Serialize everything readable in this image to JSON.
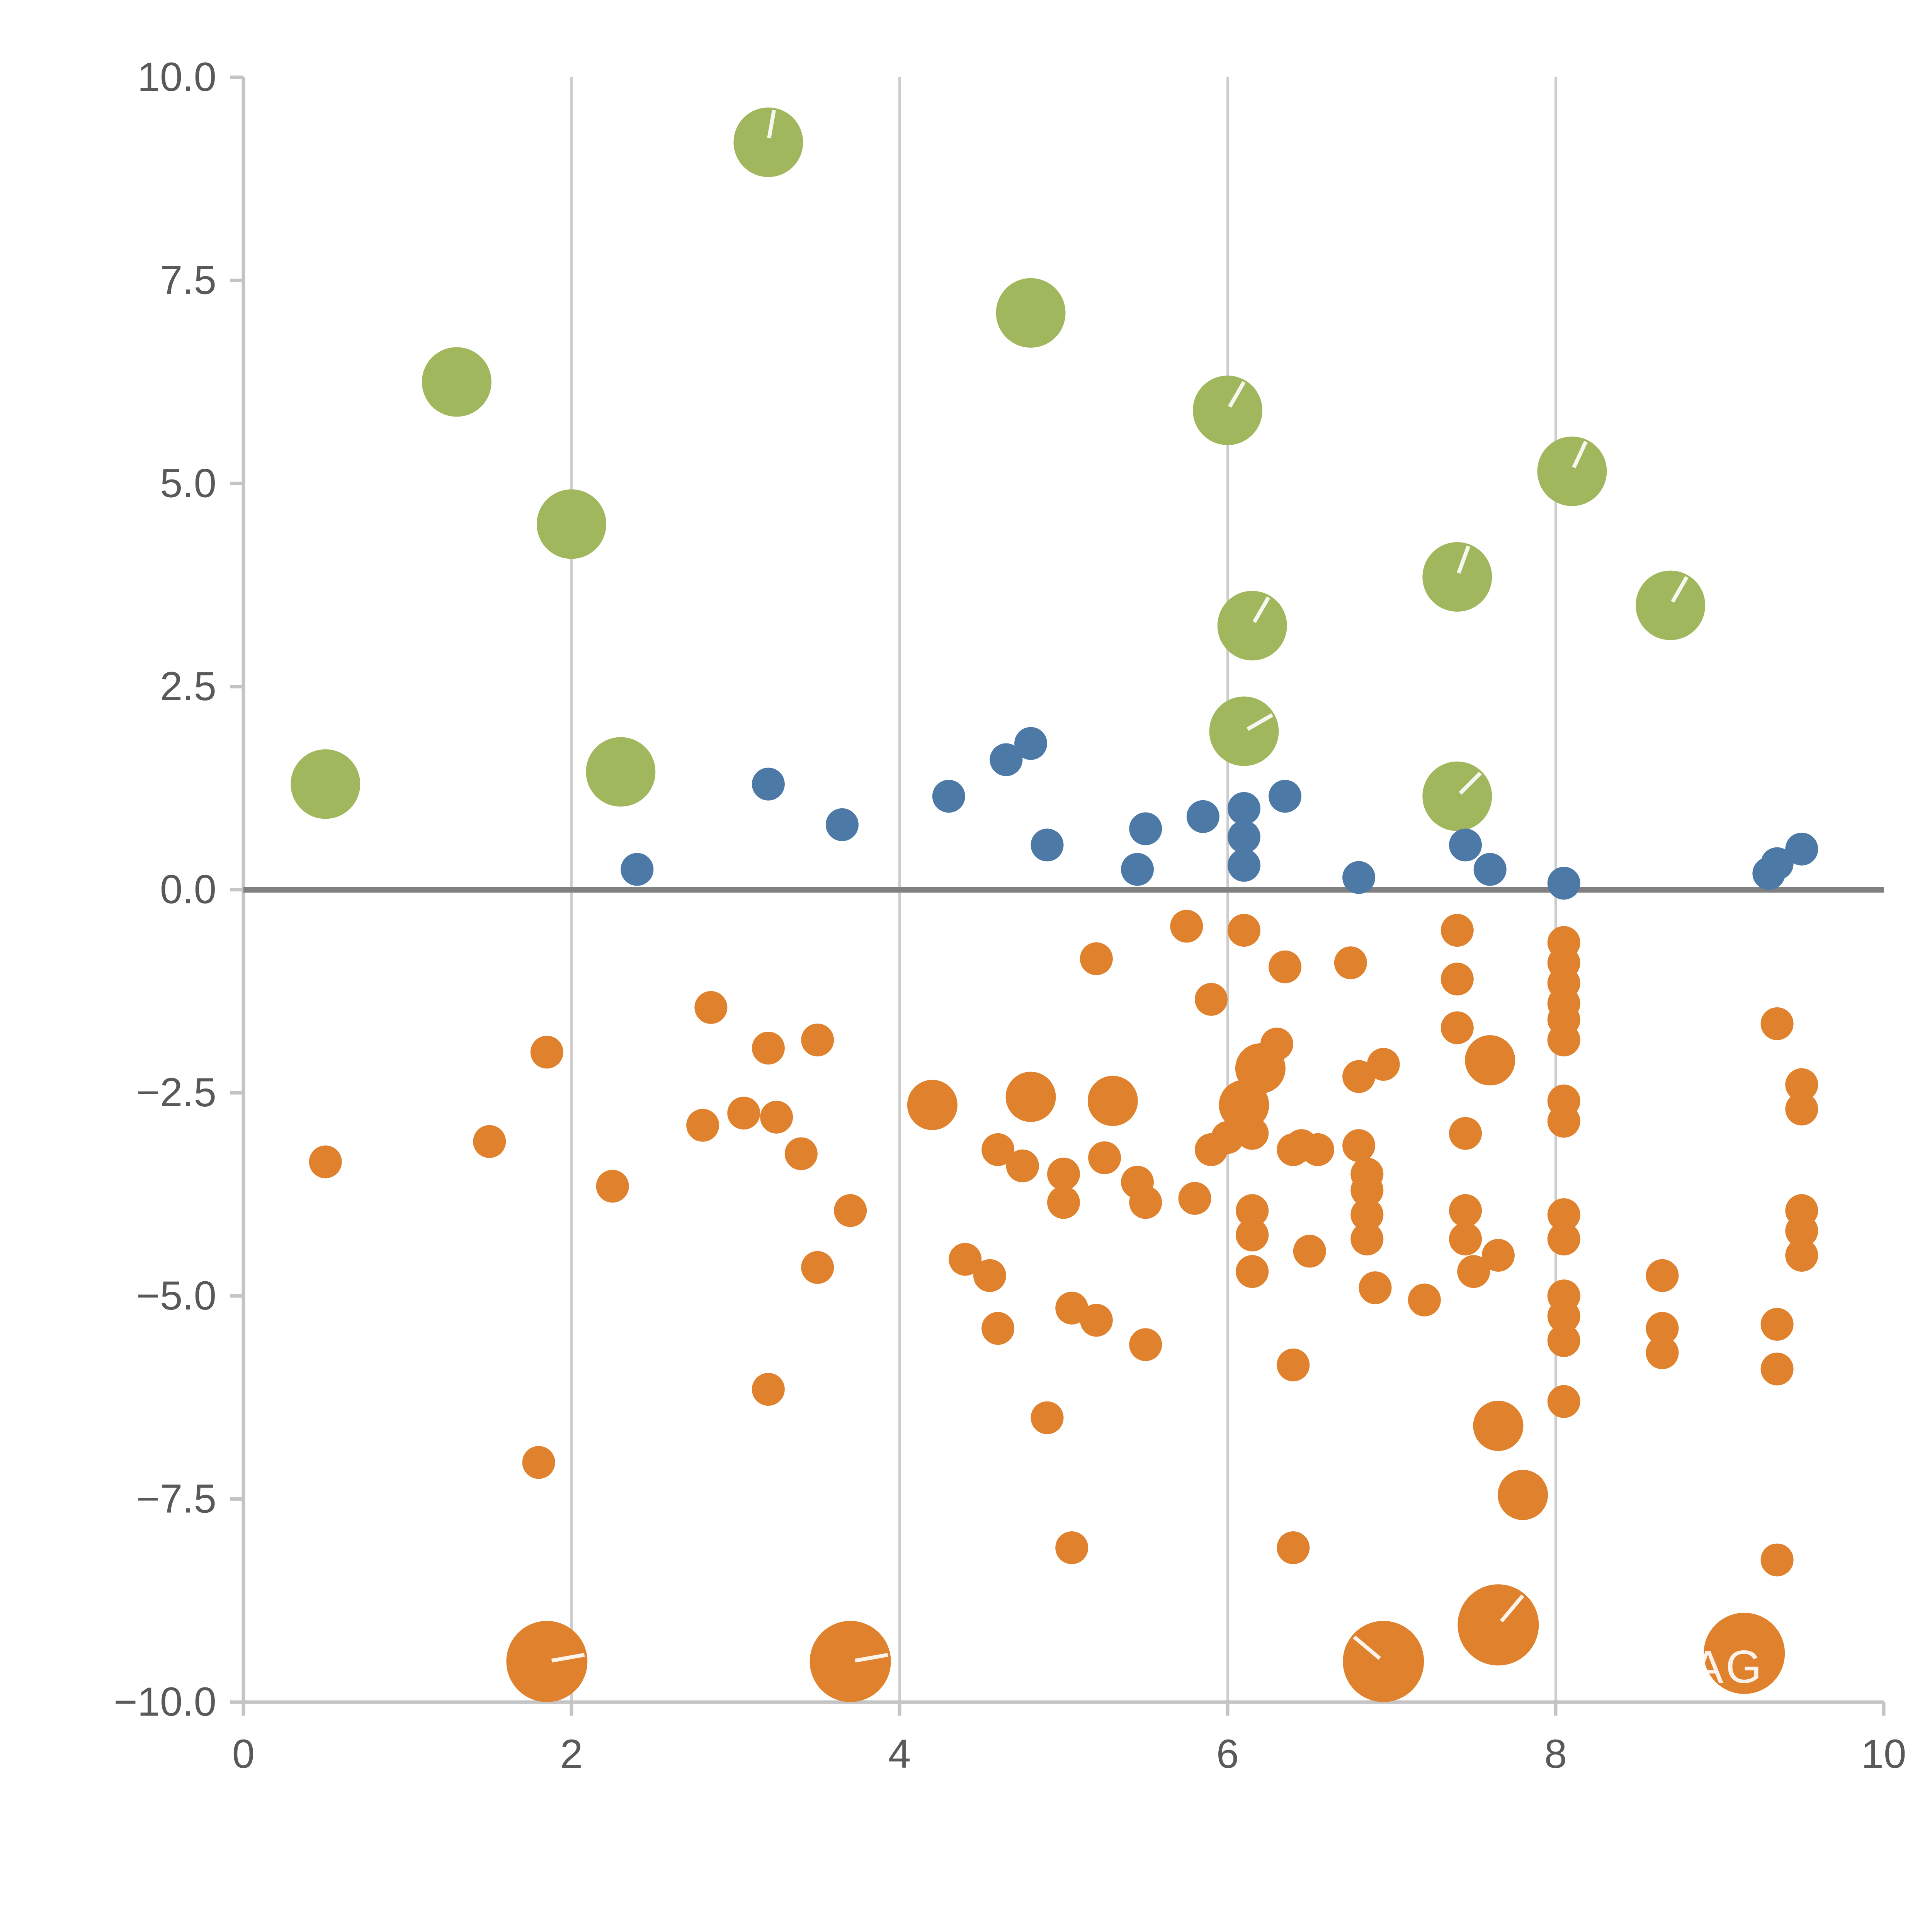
{
  "chart_data": {
    "type": "scatter",
    "title": "",
    "xlabel": "",
    "ylabel": "",
    "xlim": [
      0,
      10
    ],
    "ylim": [
      -10,
      10
    ],
    "x_ticks": [
      0,
      2,
      4,
      6,
      8,
      10
    ],
    "x_tick_labels": [
      "0",
      "2",
      "4",
      "6",
      "8",
      "10"
    ],
    "y_ticks": [
      10,
      7.5,
      5,
      2.5,
      0,
      -2.5,
      -5,
      -7.5,
      -10
    ],
    "y_tick_labels": [
      "10.0",
      "7.5",
      "5.0",
      "2.5",
      "0.0",
      "−2.5",
      "−5.0",
      "−7.5",
      "−10.0"
    ],
    "grid_x": [
      2,
      4,
      6,
      8
    ],
    "grid_on": true,
    "zero_line_y": 0,
    "legend": "none",
    "watermark": "AG",
    "colors": {
      "green": "#a1b75d",
      "blue": "#4d79a7",
      "orange": "#e0812d",
      "grid": "#cccccc",
      "spine": "#c4c4c4",
      "zero_line": "#808080",
      "tick_label": "#595959",
      "marker_slice_line": "#ffffff"
    },
    "marker_radii": {
      "g": 18,
      "b": 8.5,
      "s": 8.5,
      "m": 13,
      "L": 21
    },
    "series": [
      {
        "name": "green-large-bubbles",
        "color_key": "green",
        "default_size": "g",
        "points": [
          [
            1.3,
            6.25,
            "g",
            null
          ],
          [
            3.2,
            9.2,
            "g",
            -80
          ],
          [
            4.8,
            7.1,
            "g",
            null
          ],
          [
            2.0,
            4.5,
            "g",
            null
          ],
          [
            6.0,
            5.9,
            "g",
            -60
          ],
          [
            8.1,
            5.15,
            "g",
            -65
          ],
          [
            7.4,
            3.85,
            "g",
            -70
          ],
          [
            8.7,
            3.5,
            "g",
            -60
          ],
          [
            6.15,
            3.25,
            "g",
            -60
          ],
          [
            6.1,
            1.95,
            "g",
            -30
          ],
          [
            0.5,
            1.3,
            "g",
            null
          ],
          [
            2.3,
            1.45,
            "g",
            null
          ],
          [
            7.4,
            1.15,
            "g",
            -45
          ]
        ]
      },
      {
        "name": "orange-negative-points",
        "color_key": "orange",
        "default_size": "s",
        "points": [
          [
            0.5,
            -3.35,
            "s"
          ],
          [
            1.5,
            -3.1,
            "s"
          ],
          [
            1.85,
            -2.0,
            "s"
          ],
          [
            1.8,
            -7.05,
            "s"
          ],
          [
            1.85,
            -9.5,
            "L",
            -10
          ],
          [
            2.25,
            -3.65,
            "s"
          ],
          [
            2.8,
            -2.9,
            "s"
          ],
          [
            2.85,
            -1.45,
            "s"
          ],
          [
            3.05,
            -2.75,
            "s"
          ],
          [
            3.2,
            -1.95,
            "s"
          ],
          [
            3.25,
            -2.8,
            "s"
          ],
          [
            3.2,
            -6.15,
            "s"
          ],
          [
            3.4,
            -3.25,
            "s"
          ],
          [
            3.5,
            -1.85,
            "s"
          ],
          [
            3.5,
            -4.65,
            "s"
          ],
          [
            3.7,
            -3.95,
            "s"
          ],
          [
            3.7,
            -9.5,
            "L",
            -10
          ],
          [
            4.2,
            -2.65,
            "m"
          ],
          [
            4.4,
            -4.55,
            "s"
          ],
          [
            4.55,
            -4.75,
            "s"
          ],
          [
            4.6,
            -5.4,
            "s"
          ],
          [
            4.6,
            -3.2,
            "s"
          ],
          [
            4.75,
            -3.4,
            "s"
          ],
          [
            4.8,
            -2.55,
            "m"
          ],
          [
            4.9,
            -6.5,
            "s"
          ],
          [
            5.0,
            -3.5,
            "s"
          ],
          [
            5.0,
            -3.85,
            "s"
          ],
          [
            5.05,
            -5.15,
            "s"
          ],
          [
            5.05,
            -8.1,
            "s"
          ],
          [
            5.2,
            -5.3,
            "s"
          ],
          [
            5.2,
            -0.85,
            "s"
          ],
          [
            5.25,
            -3.3,
            "s"
          ],
          [
            5.3,
            -2.6,
            "m"
          ],
          [
            5.45,
            -3.6,
            "s"
          ],
          [
            5.5,
            -3.85,
            "s"
          ],
          [
            5.5,
            -5.6,
            "s"
          ],
          [
            5.75,
            -0.45,
            "s"
          ],
          [
            5.8,
            -3.8,
            "s"
          ],
          [
            5.9,
            -3.2,
            "s"
          ],
          [
            5.9,
            -1.35,
            "s"
          ],
          [
            6.0,
            -3.05,
            "s"
          ],
          [
            6.1,
            -0.5,
            "s"
          ],
          [
            6.1,
            -2.65,
            "m"
          ],
          [
            6.15,
            -3.0,
            "s"
          ],
          [
            6.15,
            -3.95,
            "s"
          ],
          [
            6.15,
            -4.25,
            "s"
          ],
          [
            6.15,
            -4.7,
            "s"
          ],
          [
            6.2,
            -2.2,
            "m"
          ],
          [
            6.3,
            -1.9,
            "s"
          ],
          [
            6.35,
            -0.95,
            "s"
          ],
          [
            6.4,
            -3.2,
            "s"
          ],
          [
            6.4,
            -5.85,
            "s"
          ],
          [
            6.45,
            -3.15,
            "s"
          ],
          [
            6.5,
            -4.45,
            "s"
          ],
          [
            6.55,
            -3.2,
            "s"
          ],
          [
            6.4,
            -8.1,
            "s"
          ],
          [
            6.75,
            -0.9,
            "s"
          ],
          [
            6.8,
            -3.15,
            "s"
          ],
          [
            6.8,
            -2.3,
            "s"
          ],
          [
            6.85,
            -3.5,
            "s"
          ],
          [
            6.85,
            -3.7,
            "s"
          ],
          [
            6.85,
            -4.0,
            "s"
          ],
          [
            6.85,
            -4.3,
            "s"
          ],
          [
            6.9,
            -4.9,
            "s"
          ],
          [
            6.95,
            -2.15,
            "s"
          ],
          [
            6.95,
            -9.5,
            "L",
            -140
          ],
          [
            7.2,
            -5.05,
            "s"
          ],
          [
            7.4,
            -0.5,
            "s"
          ],
          [
            7.4,
            -1.1,
            "s"
          ],
          [
            7.4,
            -1.7,
            "s"
          ],
          [
            7.45,
            -3.0,
            "s"
          ],
          [
            7.45,
            -3.95,
            "s"
          ],
          [
            7.45,
            -4.3,
            "s"
          ],
          [
            7.5,
            -4.7,
            "s"
          ],
          [
            7.6,
            -2.1,
            "m"
          ],
          [
            7.65,
            -4.5,
            "s"
          ],
          [
            7.65,
            -6.6,
            "m"
          ],
          [
            7.65,
            -9.05,
            "L",
            -50
          ],
          [
            7.8,
            -7.45,
            "m"
          ],
          [
            8.05,
            -0.65,
            "s"
          ],
          [
            8.05,
            -0.9,
            "s"
          ],
          [
            8.05,
            -1.15,
            "s"
          ],
          [
            8.05,
            -1.4,
            "s"
          ],
          [
            8.05,
            -1.6,
            "s"
          ],
          [
            8.05,
            -1.85,
            "s"
          ],
          [
            8.05,
            -2.6,
            "s"
          ],
          [
            8.05,
            -2.85,
            "s"
          ],
          [
            8.05,
            -4.0,
            "s"
          ],
          [
            8.05,
            -4.3,
            "s"
          ],
          [
            8.05,
            -5.0,
            "s"
          ],
          [
            8.05,
            -5.25,
            "s"
          ],
          [
            8.05,
            -5.55,
            "s"
          ],
          [
            8.05,
            -6.3,
            "s"
          ],
          [
            8.65,
            -4.75,
            "s"
          ],
          [
            8.65,
            -5.4,
            "s"
          ],
          [
            8.65,
            -5.7,
            "s"
          ],
          [
            9.35,
            -1.65,
            "s"
          ],
          [
            9.5,
            -2.4,
            "s"
          ],
          [
            9.5,
            -2.7,
            "s"
          ],
          [
            9.5,
            -3.95,
            "s"
          ],
          [
            9.5,
            -4.2,
            "s"
          ],
          [
            9.5,
            -4.5,
            "s"
          ],
          [
            9.35,
            -5.35,
            "s"
          ],
          [
            9.35,
            -5.9,
            "s"
          ],
          [
            9.35,
            -8.25,
            "s"
          ],
          [
            9.15,
            -9.4,
            "L",
            null
          ]
        ]
      },
      {
        "name": "blue-near-zero-points",
        "color_key": "blue",
        "default_size": "b",
        "points": [
          [
            2.4,
            0.25,
            "b"
          ],
          [
            3.2,
            1.3,
            "b"
          ],
          [
            3.65,
            0.8,
            "b"
          ],
          [
            4.3,
            1.15,
            "b"
          ],
          [
            4.65,
            1.6,
            "b"
          ],
          [
            4.8,
            1.8,
            "b"
          ],
          [
            4.9,
            0.55,
            "b"
          ],
          [
            5.45,
            0.25,
            "b"
          ],
          [
            5.5,
            0.75,
            "b"
          ],
          [
            5.85,
            0.9,
            "b"
          ],
          [
            6.1,
            1.0,
            "b"
          ],
          [
            6.1,
            0.65,
            "b"
          ],
          [
            6.1,
            0.3,
            "b"
          ],
          [
            6.35,
            1.15,
            "b"
          ],
          [
            6.8,
            0.15,
            "b"
          ],
          [
            7.45,
            0.55,
            "b"
          ],
          [
            7.6,
            0.25,
            "b"
          ],
          [
            8.05,
            0.08,
            "b"
          ],
          [
            9.3,
            0.2,
            "b"
          ],
          [
            9.35,
            0.32,
            "b"
          ],
          [
            9.5,
            0.5,
            "b"
          ]
        ]
      }
    ]
  }
}
